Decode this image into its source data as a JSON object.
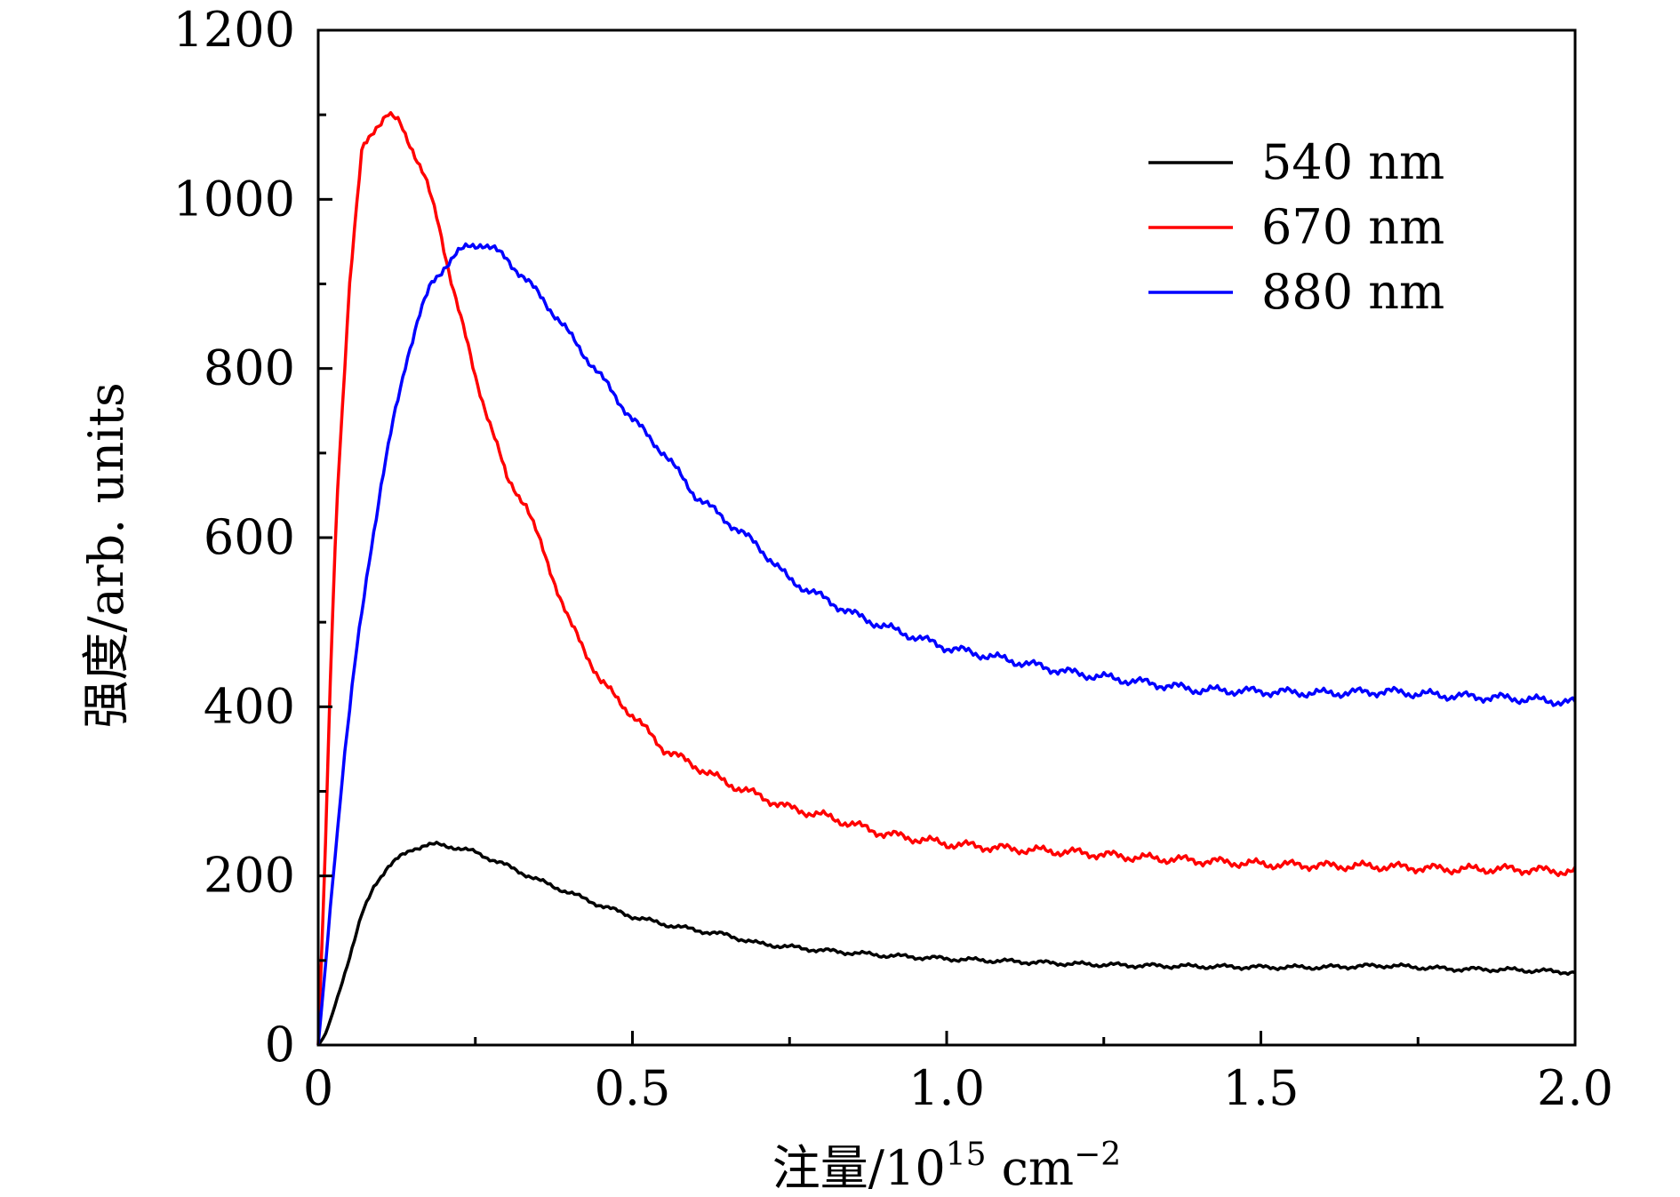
{
  "chart_data": {
    "type": "line",
    "title": "",
    "xlabel": "注量/10",
    "xlabel_sup1": "15",
    "xlabel_unit": " cm",
    "xlabel_sup2": "−2",
    "ylabel": "强度/arb. units",
    "xlim": [
      0,
      2.0
    ],
    "ylim": [
      0,
      1200
    ],
    "x_ticks": [
      0,
      0.5,
      1.0,
      1.5,
      2.0
    ],
    "x_tick_labels": [
      "0",
      "0.5",
      "1.0",
      "1.5",
      "2.0"
    ],
    "y_ticks": [
      0,
      200,
      400,
      600,
      800,
      1000,
      1200
    ],
    "y_tick_labels": [
      "0",
      "200",
      "400",
      "600",
      "800",
      "1000",
      "1200"
    ],
    "grid": false,
    "legend_position": "top-right",
    "series": [
      {
        "name": "540 nm",
        "color": "#000000",
        "x": [
          0,
          0.01,
          0.02,
          0.03,
          0.05,
          0.07,
          0.09,
          0.11,
          0.13,
          0.15,
          0.17,
          0.19,
          0.21,
          0.25,
          0.3,
          0.35,
          0.4,
          0.45,
          0.5,
          0.55,
          0.6,
          0.65,
          0.7,
          0.8,
          0.9,
          1.0,
          1.1,
          1.2,
          1.3,
          1.4,
          1.5,
          1.6,
          1.7,
          1.8,
          1.9,
          2.0
        ],
        "y": [
          0,
          10,
          30,
          55,
          105,
          155,
          190,
          210,
          222,
          232,
          236,
          237,
          235,
          228,
          212,
          195,
          180,
          165,
          152,
          143,
          136,
          130,
          120,
          112,
          106,
          102,
          99,
          96,
          94,
          93,
          92,
          92,
          94,
          90,
          89,
          86
        ]
      },
      {
        "name": "670 nm",
        "color": "#ff0000",
        "x": [
          0,
          0.01,
          0.02,
          0.03,
          0.05,
          0.07,
          0.09,
          0.11,
          0.13,
          0.15,
          0.17,
          0.19,
          0.21,
          0.23,
          0.25,
          0.28,
          0.3,
          0.33,
          0.35,
          0.4,
          0.45,
          0.5,
          0.55,
          0.6,
          0.65,
          0.7,
          0.75,
          0.8,
          0.9,
          1.0,
          1.1,
          1.2,
          1.3,
          1.4,
          1.5,
          1.6,
          1.7,
          1.8,
          1.9,
          2.0
        ],
        "y": [
          0,
          200,
          450,
          650,
          900,
          1060,
          1085,
          1100,
          1090,
          1060,
          1025,
          975,
          910,
          850,
          790,
          720,
          670,
          640,
          600,
          500,
          430,
          390,
          350,
          330,
          310,
          295,
          280,
          272,
          250,
          238,
          232,
          228,
          222,
          218,
          214,
          212,
          211,
          208,
          208,
          205
        ]
      },
      {
        "name": "880 nm",
        "color": "#0000ff",
        "x": [
          0,
          0.01,
          0.02,
          0.04,
          0.06,
          0.08,
          0.1,
          0.12,
          0.14,
          0.16,
          0.18,
          0.2,
          0.22,
          0.24,
          0.26,
          0.28,
          0.3,
          0.33,
          0.36,
          0.4,
          0.45,
          0.5,
          0.55,
          0.6,
          0.65,
          0.7,
          0.75,
          0.8,
          0.85,
          0.9,
          1.0,
          1.1,
          1.2,
          1.3,
          1.4,
          1.5,
          1.6,
          1.7,
          1.8,
          1.9,
          2.0
        ],
        "y": [
          0,
          80,
          170,
          330,
          460,
          570,
          660,
          740,
          810,
          860,
          900,
          920,
          935,
          945,
          948,
          940,
          930,
          905,
          880,
          840,
          790,
          740,
          700,
          650,
          620,
          590,
          550,
          530,
          510,
          495,
          470,
          455,
          440,
          430,
          420,
          418,
          416,
          418,
          413,
          410,
          405
        ]
      }
    ]
  }
}
